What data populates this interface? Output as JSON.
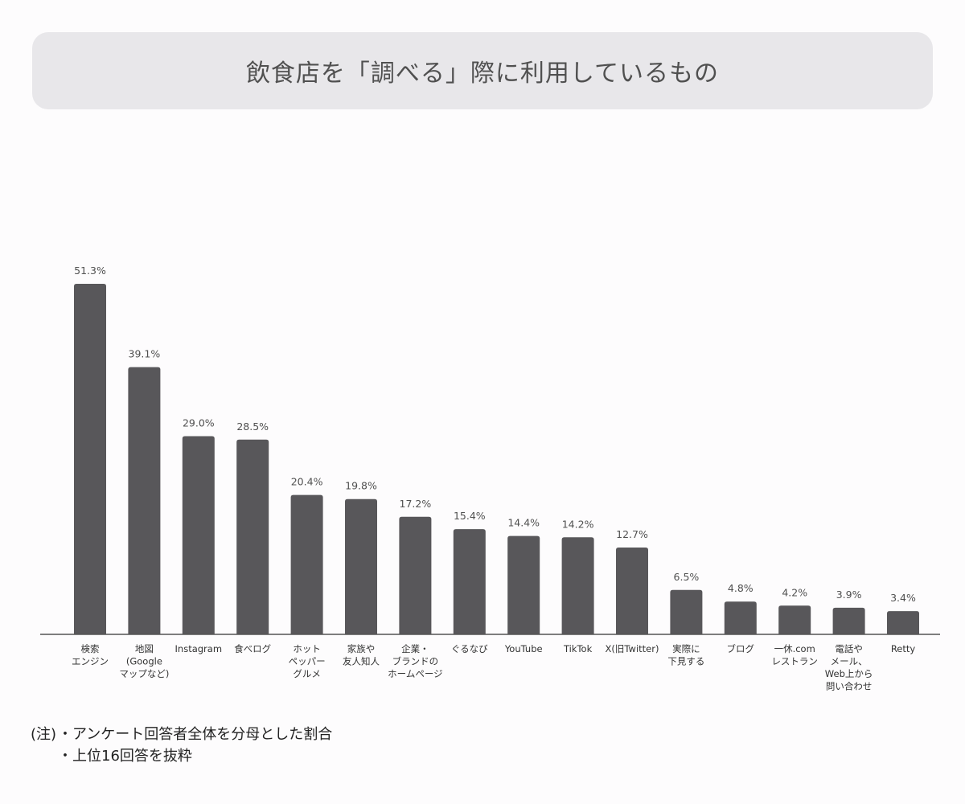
{
  "title": "飲食店を「調べる」際に利用しているもの",
  "chart_data": {
    "type": "bar",
    "categories": [
      [
        "検索",
        "エンジン"
      ],
      [
        "地図",
        "(Google",
        "マップなど)"
      ],
      [
        "Instagram"
      ],
      [
        "食べログ"
      ],
      [
        "ホット",
        "ペッパー",
        "グルメ"
      ],
      [
        "家族や",
        "友人知人"
      ],
      [
        "企業・",
        "ブランドの",
        "ホームページ"
      ],
      [
        "ぐるなび"
      ],
      [
        "YouTube"
      ],
      [
        "TikTok"
      ],
      [
        "X(旧Twitter)"
      ],
      [
        "実際に",
        "下見する"
      ],
      [
        "ブログ"
      ],
      [
        "一休.com",
        "レストラン"
      ],
      [
        "電話や",
        "メール、",
        "Web上から",
        "問い合わせ"
      ],
      [
        "Retty"
      ]
    ],
    "values": [
      51.3,
      39.1,
      29.0,
      28.5,
      20.4,
      19.8,
      17.2,
      15.4,
      14.4,
      14.2,
      12.7,
      6.5,
      4.8,
      4.2,
      3.9,
      3.4
    ],
    "value_labels": [
      "51.3%",
      "39.1%",
      "29.0%",
      "28.5%",
      "20.4%",
      "19.8%",
      "17.2%",
      "15.4%",
      "14.4%",
      "14.2%",
      "12.7%",
      "6.5%",
      "4.8%",
      "4.2%",
      "3.9%",
      "3.4%"
    ],
    "unit": "%",
    "bar_color": "#58575a",
    "xlabel": "",
    "ylabel": "",
    "ylim": [
      0,
      55
    ],
    "grid": false,
    "legend": "none"
  },
  "notes": {
    "prefix": "(注)",
    "lines": [
      "・アンケート回答者全体を分母とした割合",
      "・上位16回答を抜粋"
    ]
  }
}
